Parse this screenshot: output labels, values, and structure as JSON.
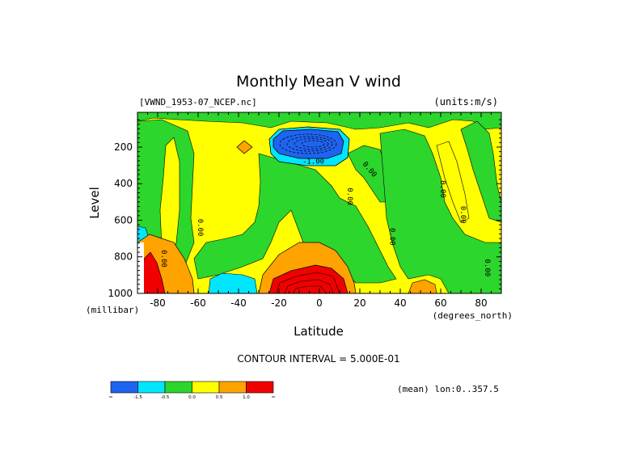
{
  "chart_data": {
    "type": "heatmap",
    "title": "Monthly Mean V wind",
    "dataset_label": "[VWND_1953-07_NCEP.nc]",
    "units_label": "(units:m/s)",
    "xlabel": "Latitude",
    "x_unit_label": "(degrees_north)",
    "ylabel": "Level",
    "y_unit_label": "(millibar)",
    "xlim": [
      -90,
      90
    ],
    "ylim": [
      1000,
      10
    ],
    "x_ticks": [
      -80,
      -60,
      -40,
      -20,
      0,
      20,
      40,
      60,
      80
    ],
    "y_ticks": [
      200,
      400,
      600,
      800,
      1000
    ],
    "contour_interval_text": "CONTOUR INTERVAL = 5.000E-01",
    "mean_note": "(mean) lon:0..357.5",
    "contour_labels": [
      {
        "text": "-1.00",
        "lat": -3,
        "level": 290
      },
      {
        "text": "0.00",
        "lat": 24,
        "level": 330
      },
      {
        "text": "0.00",
        "lat": 14,
        "level": 470
      },
      {
        "text": "0.00",
        "lat": 60,
        "level": 430
      },
      {
        "text": "0.00",
        "lat": 70,
        "level": 570
      },
      {
        "text": "0.00",
        "lat": -60,
        "level": 640
      },
      {
        "text": "0.00",
        "lat": -78,
        "level": 810
      },
      {
        "text": "0.00",
        "lat": 35,
        "level": 690
      },
      {
        "text": "0.00",
        "lat": 82,
        "level": 860
      }
    ],
    "features": [
      {
        "name": "southward-jet-core",
        "lat": -3,
        "level": 180,
        "value": -3.5
      },
      {
        "name": "northward-surface-flow",
        "lat": -10,
        "level": 950,
        "value": 3.5
      },
      {
        "name": "southern-surface-maximum",
        "lat": -82,
        "level": 950,
        "value": 2.0
      },
      {
        "name": "southern-surface-minimum",
        "lat": -40,
        "level": 975,
        "value": -1.0
      },
      {
        "name": "upper-positive-patch",
        "lat": -37,
        "level": 200,
        "value": 0.8
      }
    ],
    "colorbar": {
      "labels": [
        "-1.5",
        "-0.5",
        "0.0",
        "0.5",
        "1.0"
      ],
      "colors": [
        "#1e64f0",
        "#00e6ff",
        "#2cd62c",
        "#ffff00",
        "#ffa300",
        "#f00000"
      ]
    },
    "colors": {
      "strong_neg": "#1e64f0",
      "neg": "#00e6ff",
      "near_zero_neg": "#2cd62c",
      "near_zero_pos": "#ffff00",
      "pos": "#ffa300",
      "strong_pos": "#f00000"
    }
  }
}
